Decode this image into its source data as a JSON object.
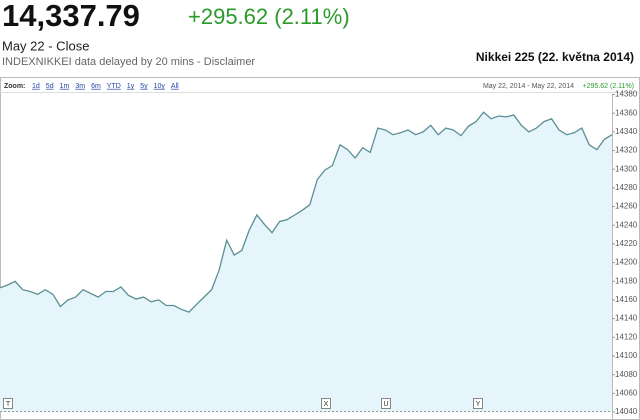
{
  "header": {
    "price": "14,337.79",
    "change": "+295.62 (2.11%)",
    "status": "May 22 - Close",
    "source": "INDEXNIKKEI data delayed by 20 mins - Disclaimer",
    "title": "Nikkei 225 (22. května 2014)"
  },
  "toolbar": {
    "zoom_label": "Zoom:",
    "ranges": [
      "1d",
      "5d",
      "1m",
      "3m",
      "6m",
      "YTD",
      "1y",
      "5y",
      "10y",
      "All"
    ],
    "date_range": "May 22, 2014 - May 22, 2014"
  },
  "chart_data": {
    "type": "line",
    "color": "#5a8f93",
    "fill": "#e6f4fc",
    "values": [
      14173,
      14176,
      14180,
      14171,
      14169,
      14166,
      14171,
      14166,
      14153,
      14160,
      14163,
      14171,
      14167,
      14163,
      14169,
      14169,
      14174,
      14165,
      14161,
      14163,
      14158,
      14160,
      14154,
      14154,
      14150,
      14147,
      14155,
      14163,
      14171,
      14192,
      14224,
      14208,
      14213,
      14235,
      14251,
      14241,
      14232,
      14244,
      14246,
      14251,
      14256,
      14262,
      14289,
      14299,
      14304,
      14326,
      14321,
      14312,
      14323,
      14318,
      14344,
      14342,
      14337,
      14339,
      14342,
      14337,
      14340,
      14347,
      14337,
      14344,
      14342,
      14336,
      14346,
      14351,
      14361,
      14354,
      14357,
      14356,
      14358,
      14347,
      14340,
      14344,
      14351,
      14354,
      14342,
      14337,
      14339,
      14344,
      14326,
      14321,
      14332,
      14337
    ],
    "ylim": [
      14040,
      14380
    ],
    "yticks": [
      14040,
      14060,
      14080,
      14100,
      14120,
      14140,
      14160,
      14180,
      14200,
      14220,
      14240,
      14260,
      14280,
      14300,
      14320,
      14340,
      14360,
      14380
    ],
    "flags": [
      "T",
      "X",
      "U",
      "Y"
    ],
    "grid": false
  }
}
